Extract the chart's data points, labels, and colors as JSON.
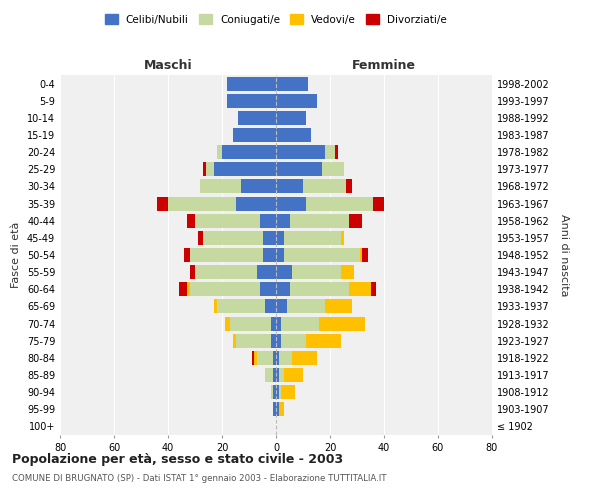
{
  "age_groups": [
    "100+",
    "95-99",
    "90-94",
    "85-89",
    "80-84",
    "75-79",
    "70-74",
    "65-69",
    "60-64",
    "55-59",
    "50-54",
    "45-49",
    "40-44",
    "35-39",
    "30-34",
    "25-29",
    "20-24",
    "15-19",
    "10-14",
    "5-9",
    "0-4"
  ],
  "birth_years": [
    "≤ 1902",
    "1903-1907",
    "1908-1912",
    "1913-1917",
    "1918-1922",
    "1923-1927",
    "1928-1932",
    "1933-1937",
    "1938-1942",
    "1943-1947",
    "1948-1952",
    "1953-1957",
    "1958-1962",
    "1963-1967",
    "1968-1972",
    "1973-1977",
    "1978-1982",
    "1983-1987",
    "1988-1992",
    "1993-1997",
    "1998-2002"
  ],
  "male": {
    "celibi": [
      0,
      1,
      1,
      1,
      1,
      2,
      2,
      4,
      6,
      7,
      5,
      5,
      6,
      15,
      13,
      23,
      20,
      16,
      14,
      18,
      18
    ],
    "coniugati": [
      0,
      0,
      1,
      3,
      6,
      13,
      15,
      18,
      26,
      23,
      27,
      22,
      24,
      25,
      15,
      3,
      2,
      0,
      0,
      0,
      0
    ],
    "vedovi": [
      0,
      0,
      0,
      0,
      1,
      1,
      2,
      1,
      1,
      0,
      0,
      0,
      0,
      0,
      0,
      0,
      0,
      0,
      0,
      0,
      0
    ],
    "divorziati": [
      0,
      0,
      0,
      0,
      1,
      0,
      0,
      0,
      3,
      2,
      2,
      2,
      3,
      4,
      0,
      1,
      0,
      0,
      0,
      0,
      0
    ]
  },
  "female": {
    "nubili": [
      0,
      1,
      1,
      1,
      1,
      2,
      2,
      4,
      5,
      6,
      3,
      3,
      5,
      11,
      10,
      17,
      18,
      13,
      11,
      15,
      12
    ],
    "coniugate": [
      0,
      0,
      1,
      2,
      5,
      9,
      14,
      14,
      22,
      18,
      28,
      21,
      22,
      25,
      16,
      8,
      4,
      0,
      0,
      0,
      0
    ],
    "vedove": [
      0,
      2,
      5,
      7,
      9,
      13,
      17,
      10,
      8,
      5,
      1,
      1,
      0,
      0,
      0,
      0,
      0,
      0,
      0,
      0,
      0
    ],
    "divorziate": [
      0,
      0,
      0,
      0,
      0,
      0,
      0,
      0,
      2,
      0,
      2,
      0,
      5,
      4,
      2,
      0,
      1,
      0,
      0,
      0,
      0
    ]
  },
  "color_celibi": "#4472c4",
  "color_coniugati": "#c5d9a0",
  "color_vedovi": "#ffc000",
  "color_divorziati": "#cc0000",
  "title": "Popolazione per età, sesso e stato civile - 2003",
  "subtitle": "COMUNE DI BRUGNATO (SP) - Dati ISTAT 1° gennaio 2003 - Elaborazione TUTTITALIA.IT",
  "ylabel_left": "Fasce di età",
  "ylabel_right": "Anni di nascita",
  "xlim": 80,
  "bg_color": "#ffffff",
  "grid_color": "#cccccc",
  "plot_bg_color": "#f0f0f0"
}
